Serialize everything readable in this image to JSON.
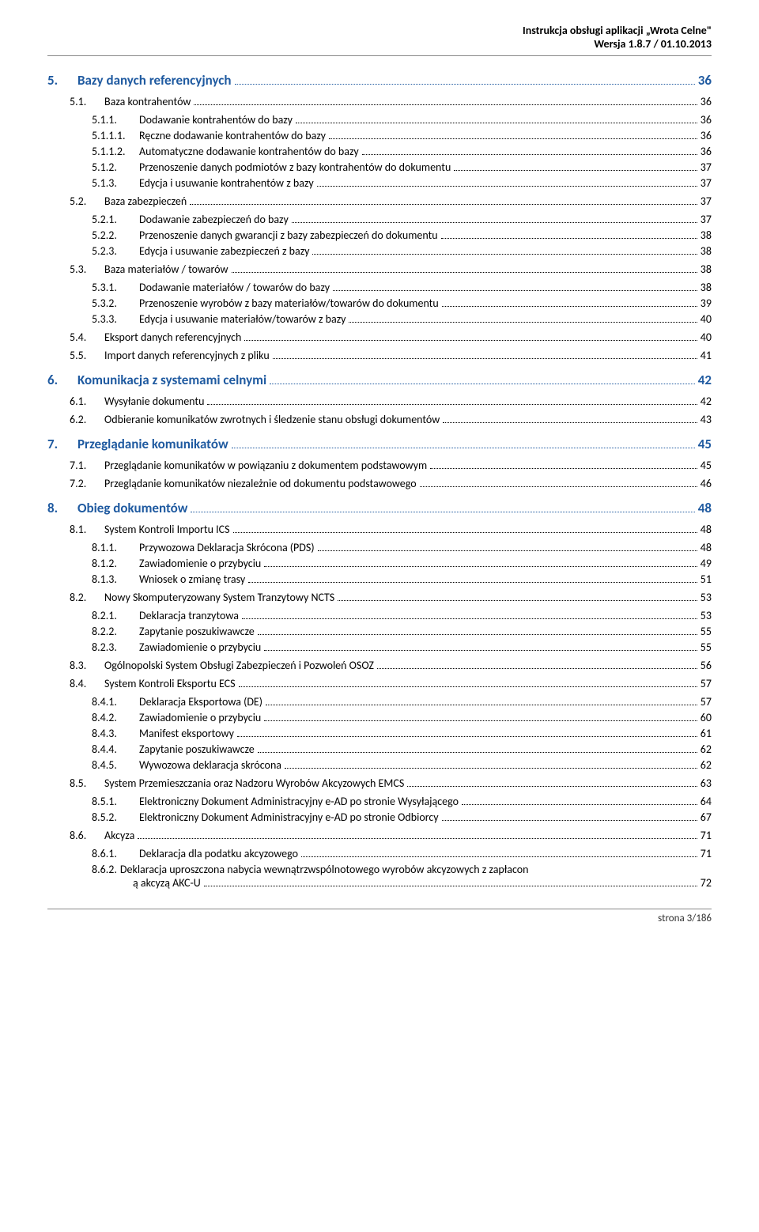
{
  "header": {
    "line1": "Instrukcja obsługi aplikacji „Wrota Celne\"",
    "line2": "Wersja 1.8.7 / 01.10.2013"
  },
  "toc": [
    {
      "num": "5.",
      "title": "Bazy danych referencyjnych",
      "page": "36",
      "lvl": 1
    },
    {
      "num": "5.1.",
      "title": "Baza kontrahentów",
      "page": "36",
      "lvl": 2
    },
    {
      "num": "5.1.1.",
      "title": "Dodawanie kontrahentów do bazy",
      "page": "36",
      "lvl": 3
    },
    {
      "num": "5.1.1.1.",
      "title": "Ręczne dodawanie kontrahentów do bazy",
      "page": "36",
      "lvl": 3
    },
    {
      "num": "5.1.1.2.",
      "title": "Automatyczne dodawanie kontrahentów do bazy",
      "page": "36",
      "lvl": 3
    },
    {
      "num": "5.1.2.",
      "title": "Przenoszenie danych podmiotów z bazy kontrahentów do dokumentu",
      "page": "37",
      "lvl": 3
    },
    {
      "num": "5.1.3.",
      "title": "Edycja i usuwanie kontrahentów z bazy",
      "page": "37",
      "lvl": 3
    },
    {
      "num": "5.2.",
      "title": "Baza zabezpieczeń",
      "page": "37",
      "lvl": 2
    },
    {
      "num": "5.2.1.",
      "title": "Dodawanie zabezpieczeń do bazy",
      "page": "37",
      "lvl": 3
    },
    {
      "num": "5.2.2.",
      "title": "Przenoszenie danych gwarancji z bazy zabezpieczeń do dokumentu",
      "page": "38",
      "lvl": 3
    },
    {
      "num": "5.2.3.",
      "title": "Edycja i usuwanie zabezpieczeń z bazy",
      "page": "38",
      "lvl": 3
    },
    {
      "num": "5.3.",
      "title": "Baza materiałów / towarów",
      "page": "38",
      "lvl": 2
    },
    {
      "num": "5.3.1.",
      "title": "Dodawanie materiałów / towarów do bazy",
      "page": "38",
      "lvl": 3
    },
    {
      "num": "5.3.2.",
      "title": "Przenoszenie wyrobów z bazy materiałów/towarów do dokumentu",
      "page": "39",
      "lvl": 3
    },
    {
      "num": "5.3.3.",
      "title": "Edycja i usuwanie materiałów/towarów z bazy",
      "page": "40",
      "lvl": 3
    },
    {
      "num": "5.4.",
      "title": "Eksport danych referencyjnych",
      "page": "40",
      "lvl": 2
    },
    {
      "num": "5.5.",
      "title": "Import danych referencyjnych z pliku",
      "page": "41",
      "lvl": 2
    },
    {
      "num": "6.",
      "title": "Komunikacja z systemami celnymi",
      "page": "42",
      "lvl": 1
    },
    {
      "num": "6.1.",
      "title": "Wysyłanie dokumentu",
      "page": "42",
      "lvl": 2
    },
    {
      "num": "6.2.",
      "title": "Odbieranie komunikatów zwrotnych i śledzenie stanu obsługi dokumentów",
      "page": "43",
      "lvl": 2
    },
    {
      "num": "7.",
      "title": "Przeglądanie komunikatów",
      "page": "45",
      "lvl": 1
    },
    {
      "num": "7.1.",
      "title": "Przeglądanie komunikatów w powiązaniu z dokumentem podstawowym",
      "page": "45",
      "lvl": 2
    },
    {
      "num": "7.2.",
      "title": "Przeglądanie komunikatów niezależnie od dokumentu podstawowego",
      "page": "46",
      "lvl": 2
    },
    {
      "num": "8.",
      "title": "Obieg dokumentów",
      "page": "48",
      "lvl": 1
    },
    {
      "num": "8.1.",
      "title": "System Kontroli Importu ICS",
      "page": "48",
      "lvl": 2
    },
    {
      "num": "8.1.1.",
      "title": "Przywozowa Deklaracja Skrócona (PDS)",
      "page": "48",
      "lvl": 3
    },
    {
      "num": "8.1.2.",
      "title": "Zawiadomienie o przybyciu",
      "page": "49",
      "lvl": 3
    },
    {
      "num": "8.1.3.",
      "title": "Wniosek o zmianę trasy",
      "page": "51",
      "lvl": 3
    },
    {
      "num": "8.2.",
      "title": "Nowy Skomputeryzowany System Tranzytowy NCTS",
      "page": "53",
      "lvl": 2
    },
    {
      "num": "8.2.1.",
      "title": "Deklaracja tranzytowa",
      "page": "53",
      "lvl": 3
    },
    {
      "num": "8.2.2.",
      "title": "Zapytanie poszukiwawcze",
      "page": "55",
      "lvl": 3
    },
    {
      "num": "8.2.3.",
      "title": "Zawiadomienie o przybyciu",
      "page": "55",
      "lvl": 3
    },
    {
      "num": "8.3.",
      "title": "Ogólnopolski System Obsługi Zabezpieczeń i Pozwoleń OSOZ",
      "page": "56",
      "lvl": 2
    },
    {
      "num": "8.4.",
      "title": "System Kontroli Eksportu ECS",
      "page": "57",
      "lvl": 2
    },
    {
      "num": "8.4.1.",
      "title": "Deklaracja Eksportowa (DE)",
      "page": "57",
      "lvl": 3
    },
    {
      "num": "8.4.2.",
      "title": "Zawiadomienie o przybyciu",
      "page": "60",
      "lvl": 3
    },
    {
      "num": "8.4.3.",
      "title": "Manifest eksportowy",
      "page": "61",
      "lvl": 3
    },
    {
      "num": "8.4.4.",
      "title": "Zapytanie poszukiwawcze",
      "page": "62",
      "lvl": 3
    },
    {
      "num": "8.4.5.",
      "title": "Wywozowa deklaracja skrócona",
      "page": "62",
      "lvl": 3
    },
    {
      "num": "8.5.",
      "title": "System Przemieszczania oraz Nadzoru Wyrobów Akcyzowych EMCS",
      "page": "63",
      "lvl": 2
    },
    {
      "num": "8.5.1.",
      "title": "Elektroniczny Dokument Administracyjny e-AD po stronie Wysyłającego",
      "page": "64",
      "lvl": 3
    },
    {
      "num": "8.5.2.",
      "title": "Elektroniczny Dokument Administracyjny e-AD po stronie Odbiorcy",
      "page": "67",
      "lvl": 3
    },
    {
      "num": "8.6.",
      "title": "Akcyza",
      "page": "71",
      "lvl": 2
    },
    {
      "num": "8.6.1.",
      "title": "Deklaracja dla podatku akcyzowego",
      "page": "71",
      "lvl": 3
    },
    {
      "num": "8.6.2.",
      "title": "Deklaracja uproszczona nabycia wewnątrzwspólnotowego wyrobów akcyzowych z zapłaconą akcyzą AKC-U",
      "page": "72",
      "lvl": 3,
      "wrap": true
    }
  ],
  "footer": {
    "text": "strona 3/186"
  },
  "colors": {
    "heading": "#1f5aa0",
    "text": "#000000",
    "rule": "#888888"
  }
}
